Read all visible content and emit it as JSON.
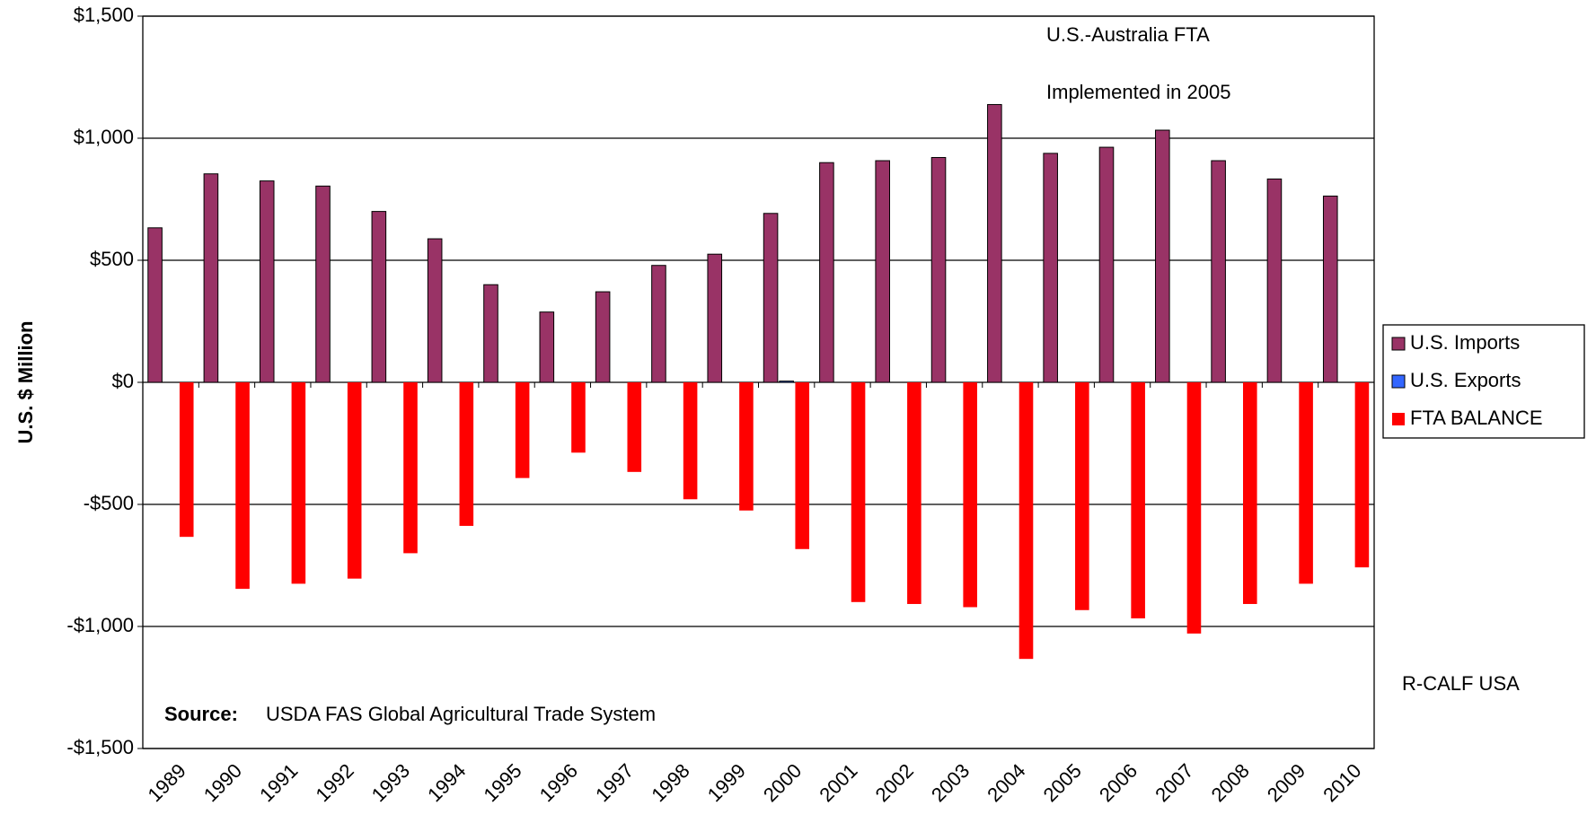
{
  "chart_data": {
    "type": "bar",
    "y_label": "U.S. $ Million",
    "annotation": [
      "U.S.-Australia FTA",
      "Implemented in 2005"
    ],
    "source_label": "Source:",
    "source_text": "USDA FAS Global Agricultural Trade System",
    "credit": "R-CALF USA",
    "categories": [
      "1989",
      "1990",
      "1991",
      "1992",
      "1993",
      "1994",
      "1995",
      "1996",
      "1997",
      "1998",
      "1999",
      "2000",
      "2001",
      "2002",
      "2003",
      "2004",
      "2005",
      "2006",
      "2007",
      "2008",
      "2009",
      "2010"
    ],
    "series": [
      {
        "name": "U.S. Imports",
        "color": "#993366",
        "values": [
          633,
          854,
          825,
          804,
          700,
          588,
          400,
          288,
          371,
          479,
          525,
          692,
          900,
          908,
          921,
          1138,
          938,
          963,
          1033,
          908,
          833,
          763
        ]
      },
      {
        "name": "U.S. Exports",
        "color": "#3366ff",
        "values": [
          0,
          0,
          0,
          0,
          0,
          0,
          0,
          0,
          0,
          0,
          0,
          5,
          0,
          0,
          0,
          0,
          0,
          0,
          0,
          0,
          0,
          0
        ]
      },
      {
        "name": "FTA BALANCE",
        "color": "#ff0000",
        "values": [
          -633,
          -846,
          -825,
          -804,
          -700,
          -588,
          -392,
          -288,
          -367,
          -479,
          -525,
          -683,
          -900,
          -908,
          -921,
          -1133,
          -933,
          -967,
          -1029,
          -908,
          -825,
          -758
        ]
      }
    ],
    "ylim": [
      -1500,
      1500
    ],
    "yticks": [
      {
        "value": -1500,
        "label": "-$1,500"
      },
      {
        "value": -1000,
        "label": "-$1,000"
      },
      {
        "value": -500,
        "label": "-$500"
      },
      {
        "value": 0,
        "label": "$0"
      },
      {
        "value": 500,
        "label": "$500"
      },
      {
        "value": 1000,
        "label": "$1,000"
      },
      {
        "value": 1500,
        "label": "$1,500"
      }
    ],
    "grid": true,
    "legend": "right"
  }
}
